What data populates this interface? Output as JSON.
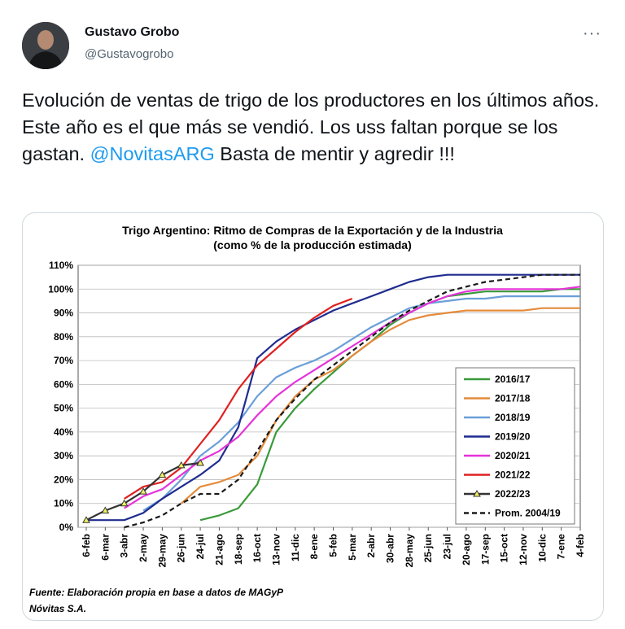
{
  "tweet": {
    "author_name": "Gustavo Grobo",
    "author_handle": "@Gustavogrobo",
    "more_label": "···",
    "text_before": "Evolución de ventas de trigo de los productores en los últimos años.   Este año es el que más se vendió.  Los uss faltan porque se los gastan. ",
    "mention": "@NovitasARG",
    "text_after": "  Basta de mentir y agredir !!!"
  },
  "chart_data": {
    "type": "line",
    "title": "Trigo Argentino: Ritmo de Compras de la Exportación y de la Industria",
    "subtitle": "(como % de la producción estimada)",
    "xlabel": "",
    "ylabel": "",
    "ylim": [
      0,
      110
    ],
    "yticks": [
      "0%",
      "10%",
      "20%",
      "30%",
      "40%",
      "50%",
      "60%",
      "70%",
      "80%",
      "90%",
      "100%",
      "110%"
    ],
    "categories": [
      "6-feb",
      "6-mar",
      "3-abr",
      "2-may",
      "29-may",
      "26-jun",
      "24-jul",
      "21-ago",
      "18-sep",
      "16-oct",
      "13-nov",
      "11-dic",
      "8-ene",
      "5-feb",
      "5-mar",
      "2-abr",
      "30-abr",
      "28-may",
      "25-jun",
      "23-jul",
      "20-ago",
      "17-sep",
      "15-oct",
      "12-nov",
      "10-dic",
      "7-ene",
      "4-feb"
    ],
    "grid": true,
    "legend_position": "bottom-right",
    "series": [
      {
        "name": "2016/17",
        "color": "#3a9a3a",
        "dash": "",
        "marker": "",
        "values": [
          null,
          null,
          null,
          null,
          null,
          null,
          3,
          5,
          8,
          18,
          40,
          50,
          58,
          65,
          72,
          78,
          85,
          90,
          94,
          97,
          98,
          99,
          99,
          99,
          99,
          100,
          100
        ]
      },
      {
        "name": "2017/18",
        "color": "#e48b3c",
        "dash": "",
        "marker": "",
        "values": [
          null,
          null,
          null,
          null,
          null,
          10,
          17,
          19,
          22,
          30,
          45,
          55,
          62,
          66,
          72,
          78,
          83,
          87,
          89,
          90,
          91,
          91,
          91,
          91,
          92,
          92,
          92
        ]
      },
      {
        "name": "2018/19",
        "color": "#6a9fd8",
        "dash": "",
        "marker": "",
        "values": [
          null,
          null,
          null,
          7,
          12,
          20,
          30,
          36,
          44,
          55,
          63,
          67,
          70,
          74,
          79,
          84,
          88,
          92,
          94,
          95,
          96,
          96,
          97,
          97,
          97,
          97,
          97
        ]
      },
      {
        "name": "2019/20",
        "color": "#1f2c8f",
        "dash": "",
        "marker": "",
        "values": [
          3,
          3,
          3,
          6,
          12,
          17,
          22,
          28,
          42,
          71,
          78,
          83,
          87,
          91,
          94,
          97,
          100,
          103,
          105,
          106,
          106,
          106,
          106,
          106,
          106,
          106,
          106
        ]
      },
      {
        "name": "2020/21",
        "color": "#e632d9",
        "dash": "",
        "marker": "",
        "values": [
          null,
          null,
          8,
          13,
          16,
          22,
          28,
          32,
          38,
          47,
          55,
          61,
          66,
          71,
          76,
          81,
          86,
          90,
          94,
          97,
          99,
          100,
          100,
          100,
          100,
          100,
          101
        ]
      },
      {
        "name": "2021/22",
        "color": "#e02020",
        "dash": "",
        "marker": "",
        "values": [
          null,
          null,
          12,
          17,
          19,
          25,
          35,
          45,
          58,
          68,
          75,
          82,
          88,
          93,
          96,
          null,
          null,
          null,
          null,
          null,
          null,
          null,
          null,
          null,
          null,
          null,
          null
        ]
      },
      {
        "name": "2022/23",
        "color": "#333333",
        "dash": "",
        "marker": "triangle",
        "values": [
          3,
          7,
          10,
          15,
          22,
          26,
          27,
          null,
          null,
          null,
          null,
          null,
          null,
          null,
          null,
          null,
          null,
          null,
          null,
          null,
          null,
          null,
          null,
          null,
          null,
          null,
          null
        ]
      },
      {
        "name": "Prom. 2004/19",
        "color": "#1a1a1a",
        "dash": "6,4",
        "marker": "",
        "values": [
          null,
          null,
          0,
          2,
          5,
          10,
          14,
          14,
          20,
          32,
          45,
          54,
          62,
          68,
          74,
          80,
          86,
          91,
          95,
          99,
          101,
          103,
          104,
          105,
          106,
          106,
          106
        ]
      }
    ],
    "source_line1": "Fuente: Elaboración propia en base a datos de MAGyP",
    "source_line2": "Nóvitas S.A."
  }
}
